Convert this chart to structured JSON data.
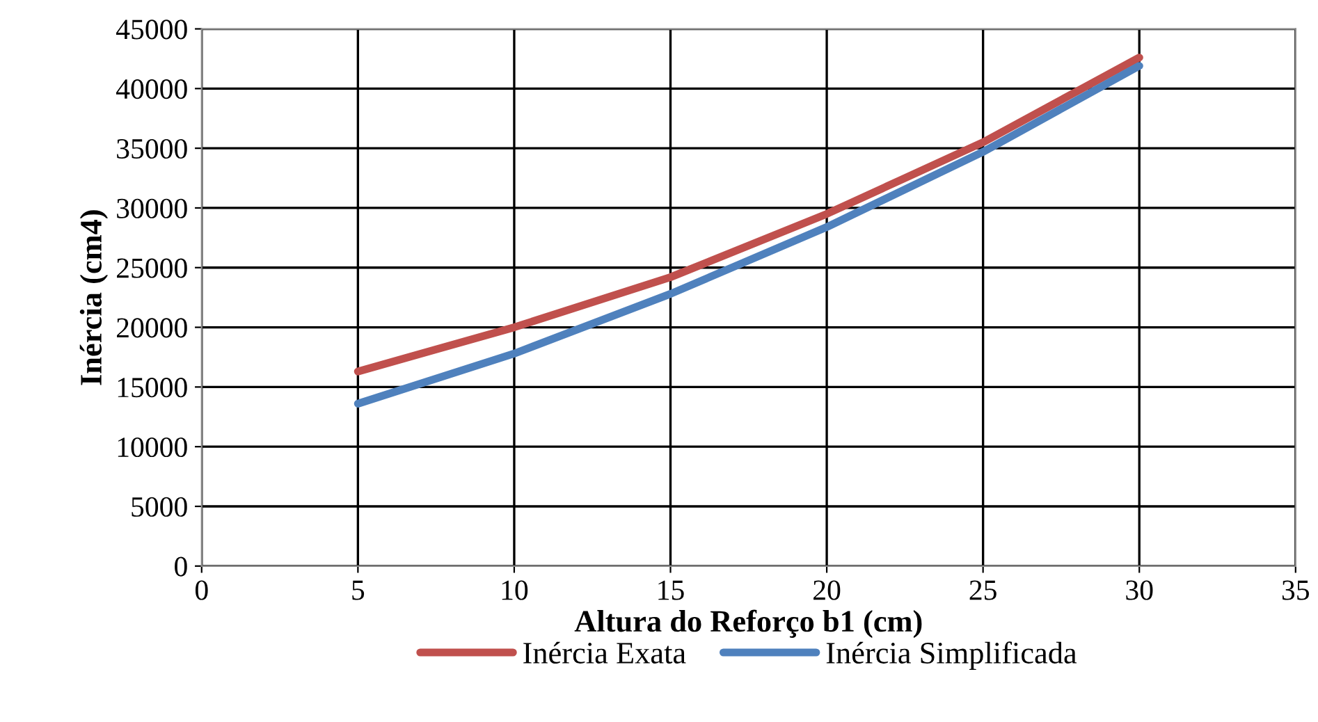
{
  "chart_data": {
    "type": "line",
    "xlabel": "Altura do Reforço b1 (cm)",
    "ylabel": "Inércia (cm4)",
    "x": [
      5,
      10,
      15,
      20,
      25,
      30
    ],
    "series": [
      {
        "name": "Inércia Exata",
        "color": "#c0504d",
        "values": [
          16300,
          20000,
          24200,
          29500,
          35500,
          42600
        ]
      },
      {
        "name": "Inércia Simplificada",
        "color": "#4f81bd",
        "values": [
          13600,
          17800,
          22800,
          28400,
          34700,
          41900
        ]
      }
    ],
    "xlim": [
      0,
      35
    ],
    "xticks": [
      0,
      5,
      10,
      15,
      20,
      25,
      30,
      35
    ],
    "ylim": [
      0,
      45000
    ],
    "yticks": [
      0,
      5000,
      10000,
      15000,
      20000,
      25000,
      30000,
      35000,
      40000,
      45000
    ],
    "grid": true,
    "legend": "bottom",
    "marker": "none",
    "line_style": "solid"
  }
}
